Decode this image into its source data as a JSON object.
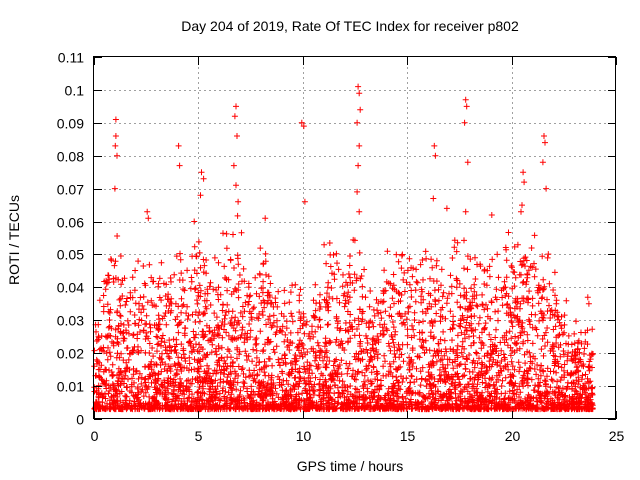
{
  "chart_data": {
    "type": "scatter",
    "title": "Day 204 of 2019, Rate Of TEC Index for receiver p802",
    "xlabel": "GPS time / hours",
    "ylabel": "ROTI / TECUs",
    "xlim": [
      0,
      25
    ],
    "ylim": [
      0,
      0.11
    ],
    "x_ticks": [
      0,
      5,
      10,
      15,
      20,
      25
    ],
    "y_ticks": [
      0,
      0.01,
      0.02,
      0.03,
      0.04,
      0.05,
      0.06,
      0.07,
      0.08,
      0.09,
      0.1,
      0.11
    ],
    "grid": true,
    "legend": "none",
    "marker": "+",
    "color": "#ff0000",
    "series_color": "#ff0000",
    "series": [
      {
        "name": "",
        "envelope": {
          "description_hours": [
            0,
            0.5,
            1.0,
            1.5,
            2.0,
            2.5,
            3.0,
            3.5,
            4.0,
            4.5,
            5.0,
            5.5,
            6.0,
            6.5,
            7.0,
            7.5,
            8.0,
            8.5,
            9.0,
            9.5,
            10.0,
            10.5,
            11.0,
            11.5,
            12.0,
            12.5,
            13.0,
            13.5,
            14.0,
            14.5,
            15.0,
            15.5,
            16.0,
            16.5,
            17.0,
            17.5,
            18.0,
            18.5,
            19.0,
            19.5,
            20.0,
            20.5,
            21.0,
            21.5,
            22.0,
            22.5,
            23.0,
            23.5,
            24.0
          ],
          "typical_max": [
            0.02,
            0.04,
            0.05,
            0.035,
            0.04,
            0.045,
            0.04,
            0.035,
            0.045,
            0.045,
            0.05,
            0.045,
            0.045,
            0.05,
            0.055,
            0.04,
            0.045,
            0.04,
            0.035,
            0.035,
            0.04,
            0.035,
            0.045,
            0.045,
            0.04,
            0.05,
            0.04,
            0.035,
            0.045,
            0.045,
            0.045,
            0.045,
            0.045,
            0.045,
            0.04,
            0.05,
            0.05,
            0.045,
            0.05,
            0.045,
            0.045,
            0.05,
            0.045,
            0.045,
            0.04,
            0.03,
            0.025,
            0.025,
            0.02
          ]
        },
        "spikes": [
          {
            "x": 1.05,
            "y": 0.091
          },
          {
            "x": 1.05,
            "y": 0.086
          },
          {
            "x": 1.02,
            "y": 0.083
          },
          {
            "x": 1.0,
            "y": 0.07
          },
          {
            "x": 1.1,
            "y": 0.08
          },
          {
            "x": 2.55,
            "y": 0.063
          },
          {
            "x": 2.6,
            "y": 0.061
          },
          {
            "x": 4.05,
            "y": 0.083
          },
          {
            "x": 4.1,
            "y": 0.077
          },
          {
            "x": 4.8,
            "y": 0.06
          },
          {
            "x": 5.15,
            "y": 0.075
          },
          {
            "x": 5.25,
            "y": 0.073
          },
          {
            "x": 5.1,
            "y": 0.068
          },
          {
            "x": 6.8,
            "y": 0.095
          },
          {
            "x": 6.75,
            "y": 0.092
          },
          {
            "x": 6.85,
            "y": 0.086
          },
          {
            "x": 6.7,
            "y": 0.077
          },
          {
            "x": 6.8,
            "y": 0.071
          },
          {
            "x": 6.9,
            "y": 0.066
          },
          {
            "x": 8.2,
            "y": 0.061
          },
          {
            "x": 9.95,
            "y": 0.09
          },
          {
            "x": 10.05,
            "y": 0.089
          },
          {
            "x": 10.1,
            "y": 0.066
          },
          {
            "x": 12.65,
            "y": 0.101
          },
          {
            "x": 12.7,
            "y": 0.099
          },
          {
            "x": 12.75,
            "y": 0.094
          },
          {
            "x": 12.6,
            "y": 0.09
          },
          {
            "x": 12.7,
            "y": 0.083
          },
          {
            "x": 12.65,
            "y": 0.077
          },
          {
            "x": 12.6,
            "y": 0.069
          },
          {
            "x": 12.7,
            "y": 0.063
          },
          {
            "x": 16.3,
            "y": 0.083
          },
          {
            "x": 16.35,
            "y": 0.08
          },
          {
            "x": 16.25,
            "y": 0.067
          },
          {
            "x": 16.9,
            "y": 0.064
          },
          {
            "x": 17.8,
            "y": 0.097
          },
          {
            "x": 17.85,
            "y": 0.095
          },
          {
            "x": 17.75,
            "y": 0.09
          },
          {
            "x": 17.9,
            "y": 0.078
          },
          {
            "x": 17.8,
            "y": 0.063
          },
          {
            "x": 19.05,
            "y": 0.062
          },
          {
            "x": 20.55,
            "y": 0.075
          },
          {
            "x": 20.6,
            "y": 0.072
          },
          {
            "x": 20.5,
            "y": 0.065
          },
          {
            "x": 20.45,
            "y": 0.063
          },
          {
            "x": 21.55,
            "y": 0.086
          },
          {
            "x": 21.6,
            "y": 0.084
          },
          {
            "x": 21.5,
            "y": 0.078
          },
          {
            "x": 21.65,
            "y": 0.07
          },
          {
            "x": 23.65,
            "y": 0.037
          },
          {
            "x": 23.7,
            "y": 0.035
          }
        ]
      }
    ]
  }
}
